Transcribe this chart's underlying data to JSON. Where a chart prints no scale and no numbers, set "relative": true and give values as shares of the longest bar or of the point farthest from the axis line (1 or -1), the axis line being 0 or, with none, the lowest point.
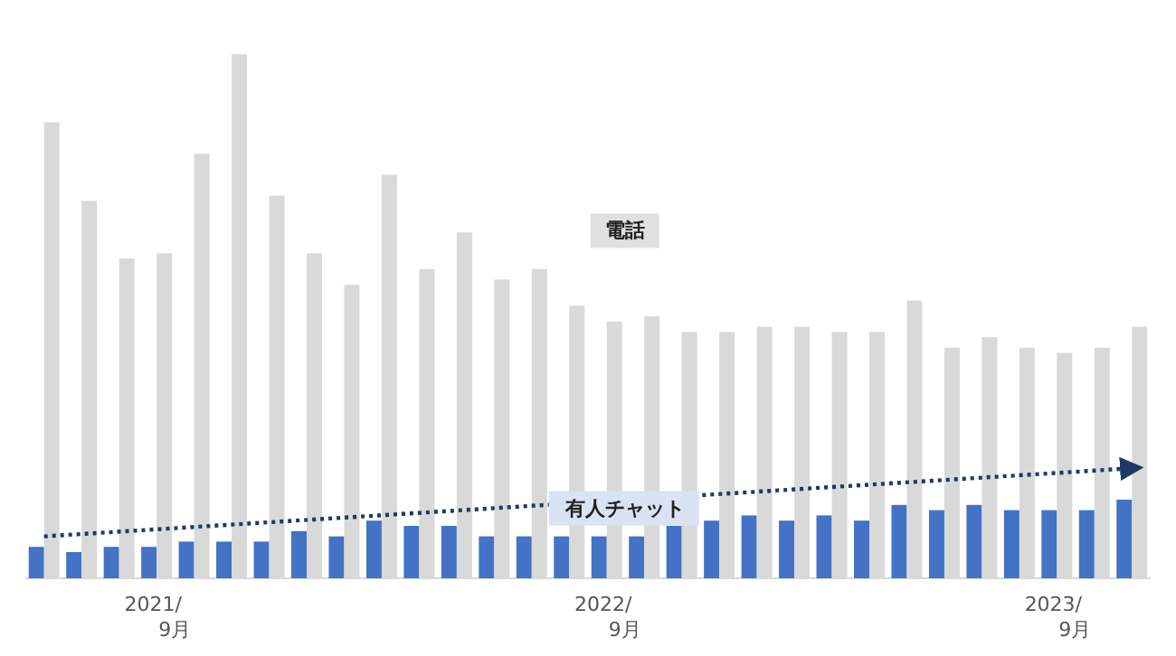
{
  "chart_data": {
    "type": "bar",
    "relative": true,
    "categories": [
      null,
      null,
      null,
      "2021/\n9月",
      null,
      null,
      null,
      null,
      null,
      null,
      null,
      null,
      null,
      null,
      null,
      "2022/\n9月",
      null,
      null,
      null,
      null,
      null,
      null,
      null,
      null,
      null,
      null,
      null,
      "2023/\n9月",
      null,
      null
    ],
    "series": [
      {
        "name": "有人チャット",
        "color": "#4472c4",
        "values": [
          0.06,
          0.05,
          0.06,
          0.06,
          0.07,
          0.07,
          0.07,
          0.09,
          0.08,
          0.11,
          0.1,
          0.1,
          0.08,
          0.08,
          0.08,
          0.08,
          0.08,
          0.1,
          0.11,
          0.12,
          0.11,
          0.12,
          0.11,
          0.14,
          0.13,
          0.14,
          0.13,
          0.13,
          0.13,
          0.15
        ]
      },
      {
        "name": "電話",
        "color": "#d9d9d9",
        "values": [
          0.87,
          0.72,
          0.61,
          0.62,
          0.81,
          1,
          0.73,
          0.62,
          0.56,
          0.77,
          0.59,
          0.66,
          0.57,
          0.59,
          0.52,
          0.49,
          0.5,
          0.47,
          0.47,
          0.48,
          0.48,
          0.47,
          0.47,
          0.53,
          0.44,
          0.46,
          0.44,
          0.43,
          0.44,
          0.48
        ]
      },
      {
        "type": "line",
        "values": [
          0.08,
          null,
          null,
          null,
          null,
          null,
          null,
          null,
          null,
          null,
          null,
          null,
          null,
          null,
          null,
          null,
          null,
          null,
          null,
          null,
          null,
          null,
          null,
          null,
          null,
          null,
          null,
          null,
          null,
          0.21
        ],
        "color": "#1f3864",
        "line_style": "dotted"
      }
    ]
  }
}
